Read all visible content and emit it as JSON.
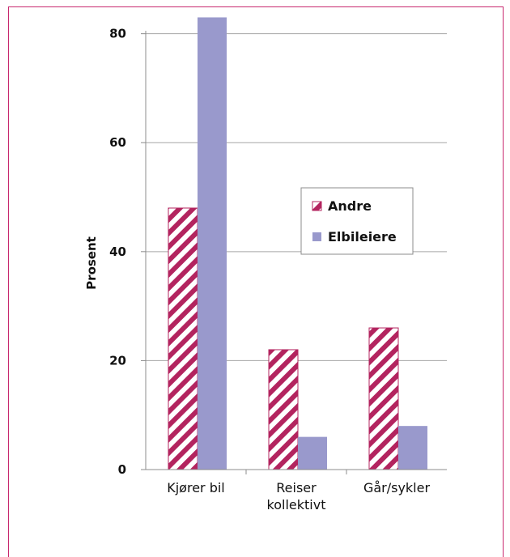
{
  "chart_data": {
    "type": "bar",
    "categories": [
      [
        "Kjører bil"
      ],
      [
        "Reiser",
        "kollektivt"
      ],
      [
        "Går/sykler"
      ]
    ],
    "series": [
      {
        "name": "Andre",
        "values": [
          48,
          22,
          26
        ],
        "color": "#b3245f",
        "pattern": "diagonal-stripes"
      },
      {
        "name": "Elbileiere",
        "values": [
          83,
          6,
          8
        ],
        "color": "#9999cc",
        "pattern": "solid"
      }
    ],
    "title": "",
    "xlabel": "",
    "ylabel": "Prosent",
    "ylim": [
      0,
      85
    ],
    "yticks": [
      0,
      20,
      40,
      60,
      80
    ],
    "grid": true,
    "legend_position": "right"
  },
  "colors": {
    "frame": "#c8286e",
    "gridline": "#a6a6a6",
    "axis": "#8c8c8c"
  }
}
